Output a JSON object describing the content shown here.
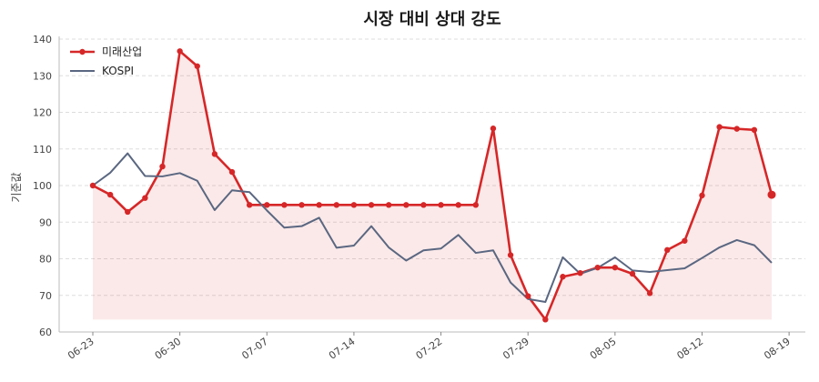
{
  "chart_data": {
    "type": "line",
    "title": "시장 대비 상대 강도",
    "xlabel": "",
    "ylabel": "기준값",
    "ylim": [
      60,
      140
    ],
    "yticks": [
      "60",
      "70",
      "80",
      "90",
      "100",
      "110",
      "120",
      "130",
      "140"
    ],
    "xtick_labels": [
      "06-23",
      "06-30",
      "07-07",
      "07-14",
      "07-22",
      "07-29",
      "08-05",
      "08-12",
      "08-19"
    ],
    "grid": "horizontal-dashed",
    "legend_position": "top-left",
    "series": [
      {
        "name": "미래산업",
        "color": "#d62728",
        "marker": "circle",
        "fill_to_min": true,
        "values": [
          100,
          97.5,
          92.8,
          96.6,
          105.2,
          136.7,
          132.6,
          108.6,
          103.7,
          94.7,
          94.7,
          94.7,
          94.7,
          94.7,
          94.7,
          94.7,
          94.7,
          94.7,
          94.7,
          94.7,
          94.7,
          94.7,
          94.7,
          115.6,
          81.0,
          69.8,
          63.4,
          75.1,
          76.1,
          77.6,
          77.6,
          75.9,
          70.6,
          82.4,
          84.9,
          97.3,
          116.0,
          115.5,
          115.2,
          97.5
        ]
      },
      {
        "name": "KOSPI",
        "color": "#5a6781",
        "marker": "none",
        "fill_to_min": false,
        "values": [
          100,
          103.5,
          108.8,
          102.6,
          102.5,
          103.4,
          101.3,
          93.3,
          98.7,
          98.2,
          93.2,
          88.5,
          88.9,
          91.2,
          83.0,
          83.6,
          88.9,
          83.1,
          79.5,
          82.3,
          82.8,
          86.5,
          81.6,
          82.3,
          73.5,
          69.0,
          68.2,
          80.4,
          75.9,
          77.5,
          80.4,
          76.8,
          76.4,
          76.9,
          77.4,
          80.2,
          83.1,
          85.1,
          83.7,
          78.9
        ]
      }
    ]
  }
}
